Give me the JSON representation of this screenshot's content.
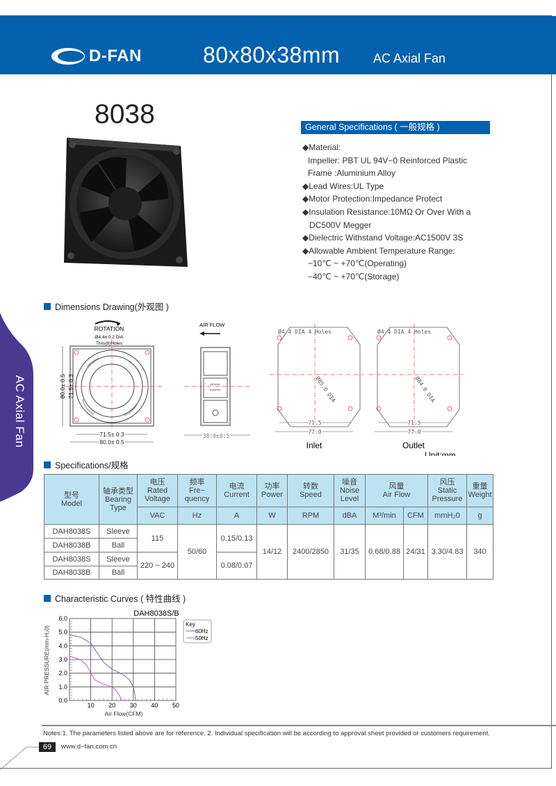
{
  "header": {
    "brand": "D-FAN",
    "title": "80x80x38mm",
    "subtitle": "AC Axial Fan",
    "color": "#0461ae"
  },
  "model_number": "8038",
  "side_tab": {
    "label": "AC Axial Fan",
    "color": "#4a3990"
  },
  "general_specs": {
    "heading": "General Specifications ( 一般规格 )",
    "lines": [
      "◆Material:",
      "Impeller: PBT UL 94V−0 Reinforced Plastic",
      "Frame :Aluminium Alloy",
      "◆Lead Wires:UL Type",
      "◆Motor Protection:Impedance Protect",
      "◆Insulation Resistance:10MΩ  Or Over With a",
      "DC500V Megger",
      "◆Dielectric Withstand Voltage:AC1500V 3S",
      "◆Allowable Ambient Temperature Range:",
      "−10℃ ~ +70℃(Operating)",
      "−40℃ ~ +70℃(Storage)"
    ]
  },
  "dimensions": {
    "heading": "Dimensions Drawing(外观图 )",
    "front": {
      "rotation": "ROTATION",
      "hole_note_1": "Ø4.4±  0.2 DIA",
      "hole_note_2": "Thru(8)Holes",
      "dim_outer": "80.0±  0.5",
      "dim_inner": "71.5±  0.3",
      "dim_outer_v": "80.0±  0.5",
      "dim_inner_v": "71.5±  0.3"
    },
    "side": {
      "airflow": "AIR FLOW",
      "depth": "38.0±0.5",
      "label_airflow": "AIR FLOW",
      "label_rotation": "ROTATION"
    },
    "inlet": {
      "holes": "Ø4.4 DIA 4 Holes",
      "dia": "Ø85.0 DIA",
      "dim1": "71.5",
      "dim2": "77.0",
      "caption": "Inlet"
    },
    "outlet": {
      "holes": "Ø4.4 DIA 4 Holes",
      "dia": "Ø84.0 DIA",
      "dim1": "71.5",
      "dim2": "77.0",
      "caption": "Outlet"
    },
    "unit": "Unit:mm"
  },
  "specifications": {
    "heading": "Specifications/规格",
    "headers": {
      "model": [
        "型号",
        "Model"
      ],
      "bearing": [
        "轴承类型",
        "Bearing",
        "Type"
      ],
      "voltage": [
        "电压",
        "Rated",
        "Voltage"
      ],
      "frequency": [
        "频率",
        "Fre−",
        "quency"
      ],
      "current": [
        "电流",
        "Current"
      ],
      "power": [
        "功率",
        "Power"
      ],
      "speed": [
        "转数",
        "Speed"
      ],
      "noise": [
        "噪音",
        "Noise",
        "Level"
      ],
      "airflow": [
        "风量",
        "Air Flow"
      ],
      "pressure": [
        "风压",
        "Static",
        "Pressure"
      ],
      "weight": [
        "重量",
        "Weight"
      ]
    },
    "units": [
      "VAC",
      "Hz",
      "A",
      "W",
      "RPM",
      "dBA",
      "M³/min",
      "CFM",
      "mmH₂0",
      "g"
    ],
    "rows": [
      {
        "model": "DAH8038S",
        "bearing": "Sleeve"
      },
      {
        "model": "DAH8038B",
        "bearing": "Ball"
      },
      {
        "model": "DAH8038S",
        "bearing": "Sleeve"
      },
      {
        "model": "DAH8038B",
        "bearing": "Ball"
      }
    ],
    "voltage": [
      "115",
      "220 ~ 240"
    ],
    "frequency": "50/60",
    "current": [
      "0.15/0.13",
      "0.08/0.07"
    ],
    "power": "14/12",
    "speed": "2400/2850",
    "noise": "31/35",
    "airflow_m3min": "0.68/0.88",
    "airflow_cfm": "24/31",
    "pressure": "3.30/4.83",
    "weight": "340"
  },
  "curves_heading": "Characteristic Curves ( 特性曲线 )",
  "chart_data": {
    "type": "line",
    "title": "DAH8038S/B",
    "xlabel": "Air Flow(CFM)",
    "ylabel": "AIR PRESSURE(mm-H₂0)",
    "xlim": [
      0,
      50
    ],
    "ylim": [
      0,
      6
    ],
    "xticks": [
      "10",
      "20",
      "30",
      "40",
      "50"
    ],
    "yticks": [
      "0.0",
      "1.0",
      "2.0",
      "3.0",
      "4.0",
      "5.0",
      "6.0"
    ],
    "grid": true,
    "legend": {
      "title": "Key",
      "placement": "top-right outside"
    },
    "series": [
      {
        "name": "60Hz",
        "color": "#6a6aa8",
        "x": [
          0,
          5,
          10,
          13,
          16,
          20,
          25,
          28,
          30,
          30.6,
          31
        ],
        "y": [
          4.8,
          4.65,
          4.2,
          3.5,
          2.8,
          2.3,
          1.9,
          1.55,
          1.0,
          0.6,
          0
        ]
      },
      {
        "name": "50Hz",
        "color": "#c060c0",
        "x": [
          0,
          5,
          8,
          10,
          12,
          16,
          20,
          21.5,
          23,
          24,
          24.5
        ],
        "y": [
          3.25,
          3.0,
          2.6,
          2.0,
          1.5,
          1.2,
          1.0,
          0.8,
          0.5,
          0.2,
          0
        ]
      }
    ]
  },
  "footer": {
    "notes": "Notes:1. The parameters listed above are for reference.   2. Individual specification will be according to approval sheet provided or customers requirement.",
    "page_number": "69",
    "url": "www.d−fan.com.cn"
  }
}
